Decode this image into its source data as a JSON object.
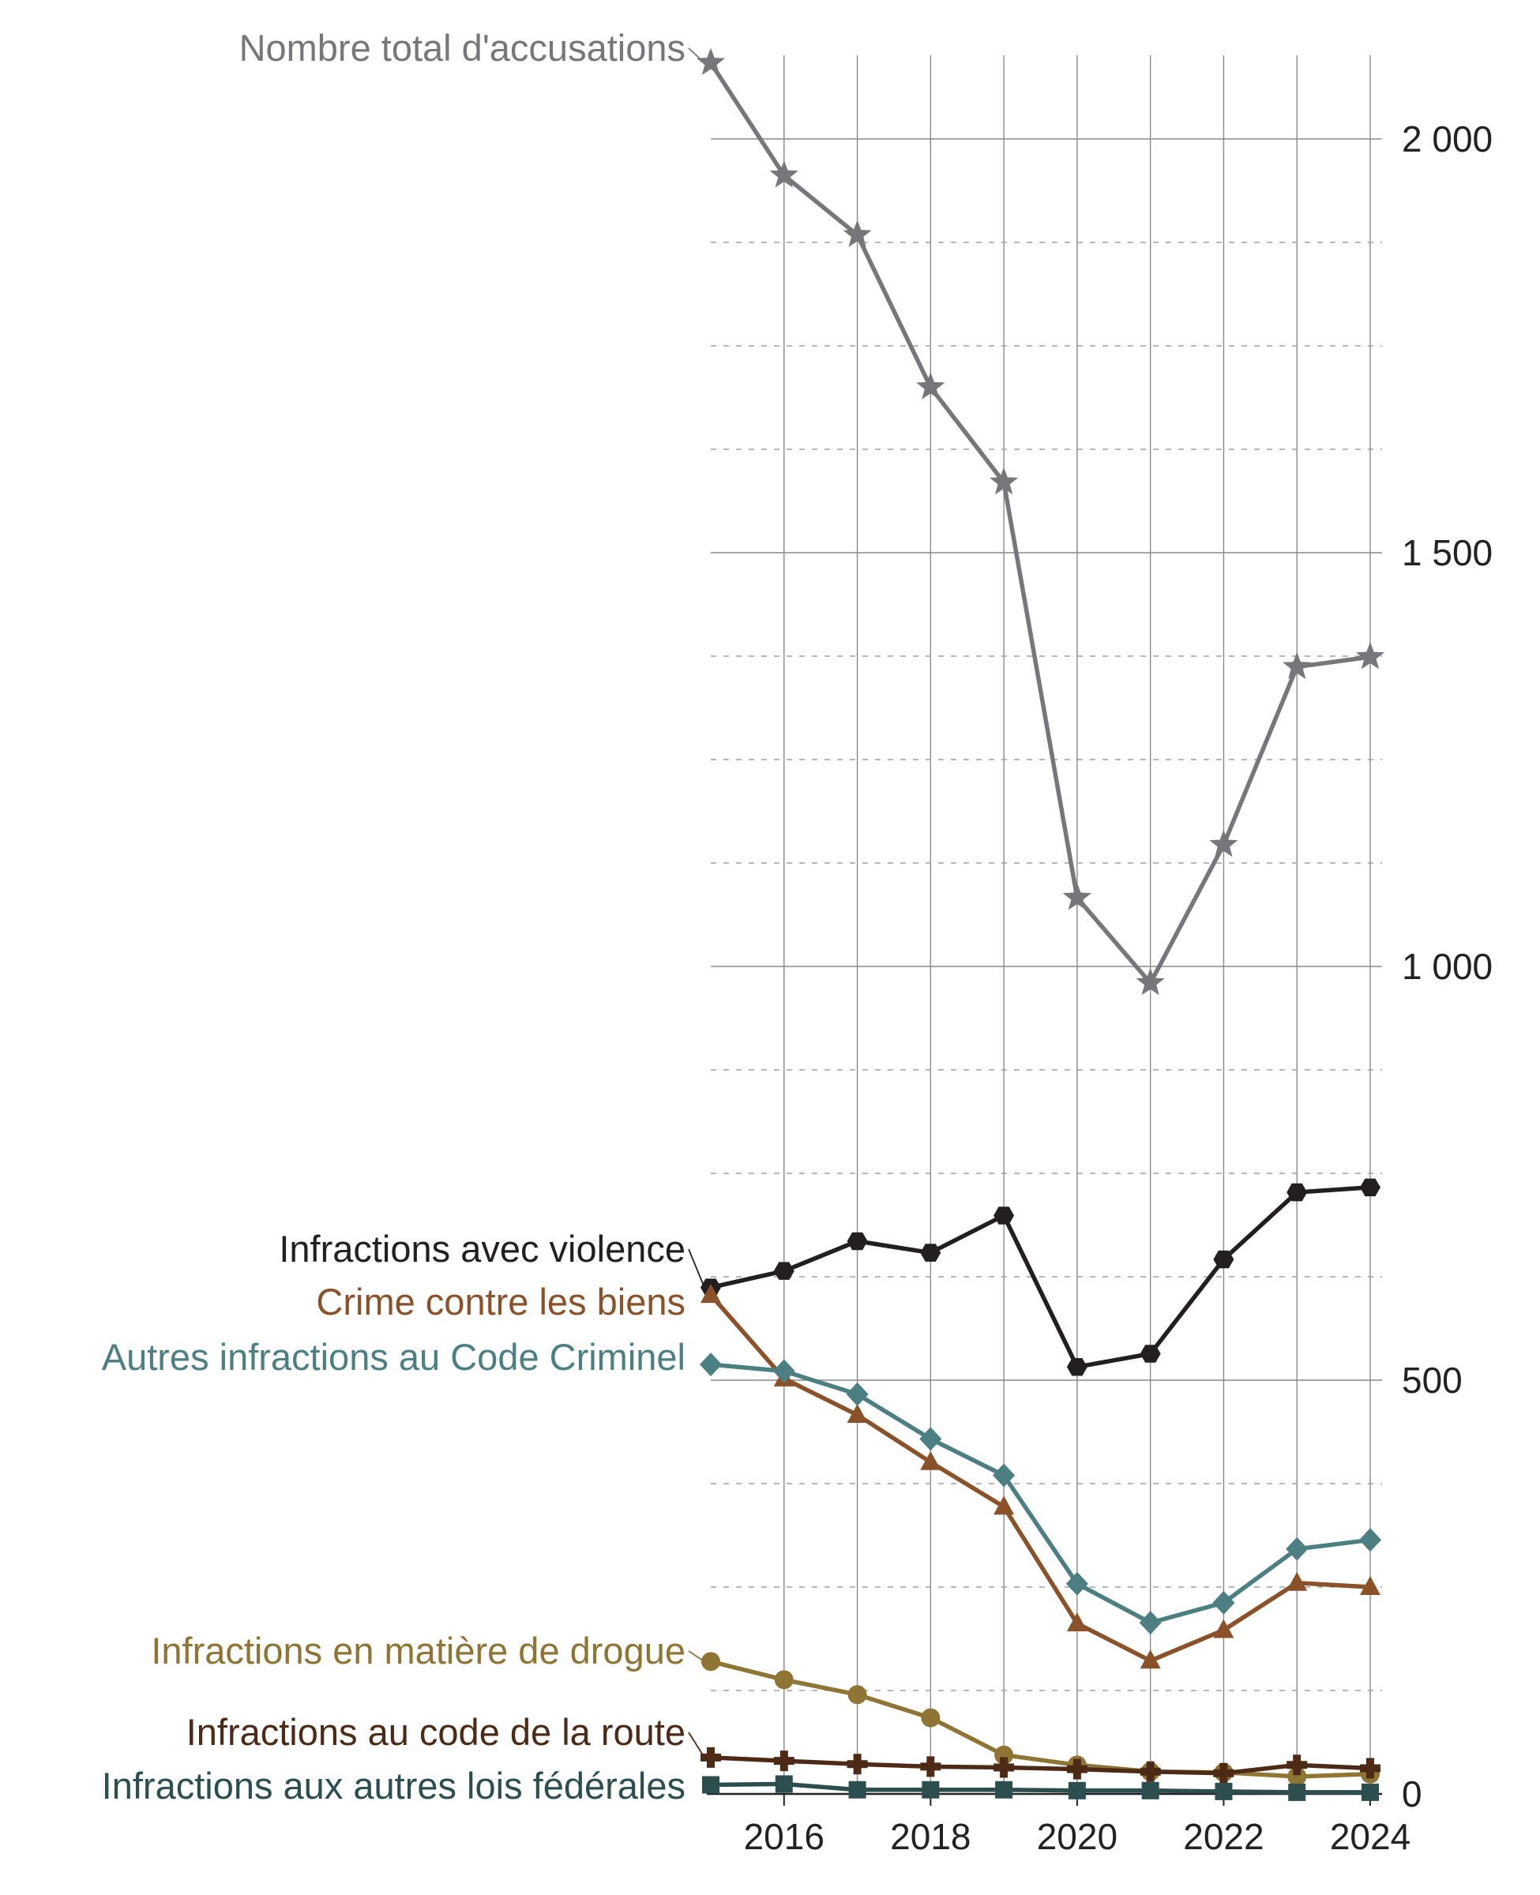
{
  "chart_data": {
    "type": "line",
    "title": "",
    "xlabel": "",
    "ylabel": "",
    "xlim": [
      2015,
      2024
    ],
    "ylim": [
      0,
      2150
    ],
    "x_ticks": [
      2016,
      2018,
      2020,
      2022,
      2024
    ],
    "y_ticks": [
      0,
      500,
      1000,
      1500,
      2000
    ],
    "y_tick_labels": [
      "0",
      "500",
      "1 000",
      "1 500",
      "2 000"
    ],
    "y_axis_position": "right",
    "grid": {
      "vertical_every_year": true,
      "horizontal_major": true,
      "horizontal_minor_dashed": true
    },
    "legend": "labels at start of each line (left)",
    "x": [
      2015,
      2016,
      2017,
      2018,
      2019,
      2020,
      2021,
      2022,
      2023,
      2024
    ],
    "series": [
      {
        "name": "Nombre total d'accusations",
        "color": "#77767b",
        "marker": "star",
        "values": [
          2092,
          1956,
          1884,
          1700,
          1585,
          1083,
          980,
          1147,
          1362,
          1374
        ]
      },
      {
        "name": "Infractions avec violence",
        "color": "#231f20",
        "marker": "hexagon",
        "values": [
          612,
          632,
          668,
          654,
          699,
          516,
          532,
          646,
          727,
          733
        ]
      },
      {
        "name": "Crime contre les biens",
        "color": "#8b5129",
        "marker": "triangle",
        "values": [
          603,
          502,
          458,
          401,
          347,
          206,
          161,
          198,
          255,
          250
        ]
      },
      {
        "name": "Autres infractions au Code Criminel",
        "color": "#4b7f82",
        "marker": "diamond",
        "values": [
          519,
          511,
          483,
          429,
          385,
          254,
          207,
          231,
          296,
          307
        ]
      },
      {
        "name": "Infractions en matière de drogue",
        "color": "#8f7533",
        "marker": "circle",
        "values": [
          160,
          138,
          120,
          92,
          47,
          35,
          27,
          26,
          21,
          24
        ]
      },
      {
        "name": "Infractions au code de la route",
        "color": "#4d2a16",
        "marker": "plus",
        "values": [
          44,
          40,
          36,
          33,
          32,
          30,
          27,
          25,
          35,
          31
        ]
      },
      {
        "name": "Infractions aux autres lois fédérales",
        "color": "#2c4e4f",
        "marker": "square",
        "values": [
          11,
          12,
          5,
          5,
          5,
          4,
          4,
          3,
          2,
          2
        ]
      }
    ]
  }
}
